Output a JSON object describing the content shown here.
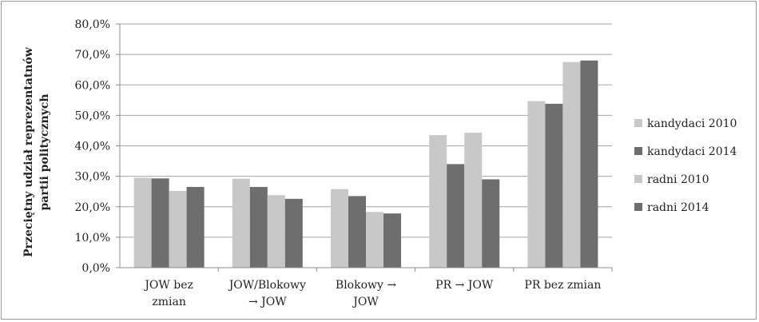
{
  "chart_data": {
    "type": "bar",
    "categories": [
      [
        "JOW bez",
        "zmian"
      ],
      [
        "JOW/Blokowy",
        "→ JOW"
      ],
      [
        "Blokowy →",
        "JOW"
      ],
      [
        "PR → JOW"
      ],
      [
        "PR bez zmian"
      ]
    ],
    "series": [
      {
        "name": "kandydaci 2010",
        "color": "#c8c8c8",
        "values": [
          29.5,
          29.2,
          25.8,
          43.5,
          54.7
        ]
      },
      {
        "name": "kandydaci 2014",
        "color": "#6e6e6e",
        "values": [
          29.3,
          26.5,
          23.5,
          34.0,
          53.8
        ]
      },
      {
        "name": "radni 2010",
        "color": "#c8c8c8",
        "values": [
          25.2,
          23.8,
          18.3,
          44.3,
          67.5
        ]
      },
      {
        "name": "radni 2014",
        "color": "#6e6e6e",
        "values": [
          26.5,
          22.6,
          17.8,
          29.0,
          68.0
        ]
      }
    ],
    "yticks": [
      "0,0%",
      "10,0%",
      "20,0%",
      "30,0%",
      "40,0%",
      "50,0%",
      "60,0%",
      "70,0%",
      "80,0%"
    ],
    "ylim": [
      0,
      80
    ],
    "ylabel_lines": [
      "Przeciętny udział reprezentatnów",
      "partii politycznych"
    ],
    "xlabel": "",
    "title": "",
    "grid": true,
    "legend_position": "right"
  }
}
